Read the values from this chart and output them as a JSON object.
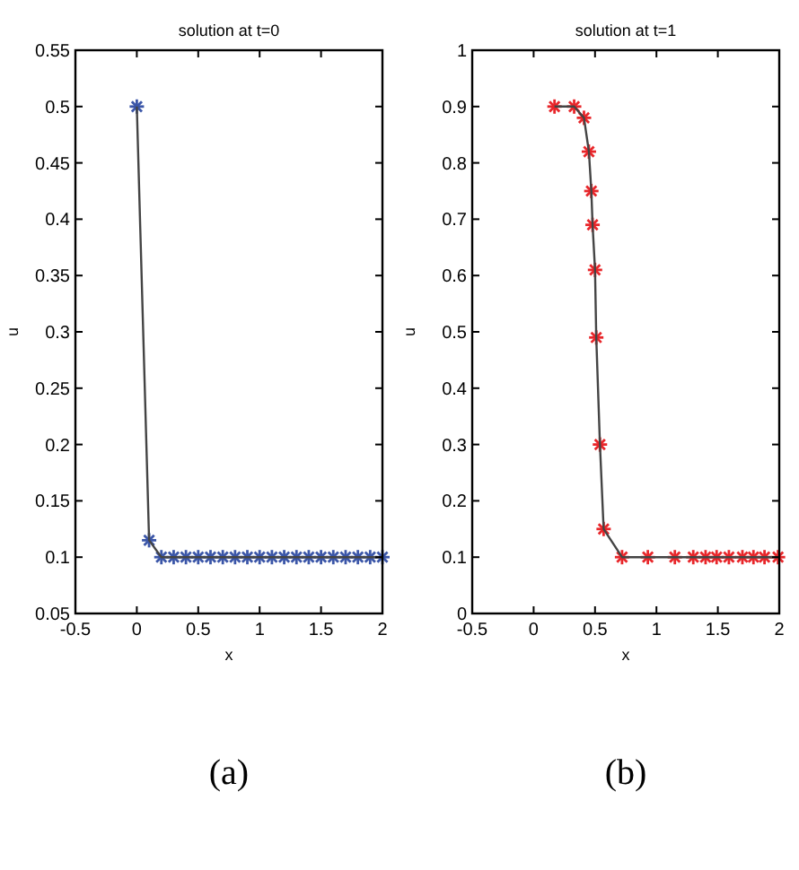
{
  "chart_data": [
    {
      "type": "line",
      "title": "solution at t=0",
      "xlabel": "x",
      "ylabel": "u",
      "marker": "cross",
      "line_style": "solid",
      "grid": false,
      "series": [
        {
          "type": "scatter",
          "color": "#3b56a8",
          "x": [
            0,
            0.1,
            0.2,
            0.3,
            0.4,
            0.5,
            0.6,
            0.7,
            0.8,
            0.9,
            1.0,
            1.1,
            1.2,
            1.3,
            1.4,
            1.5,
            1.6,
            1.7,
            1.8,
            1.9,
            2.0
          ],
          "values": [
            0.5,
            0.115,
            0.1,
            0.1,
            0.1,
            0.1,
            0.1,
            0.1,
            0.1,
            0.1,
            0.1,
            0.1,
            0.1,
            0.1,
            0.1,
            0.1,
            0.1,
            0.1,
            0.1,
            0.1,
            0.1
          ]
        },
        {
          "color": "#444444",
          "x": [
            0,
            0.1,
            0.2,
            0.3,
            0.4,
            0.5,
            0.6,
            0.7,
            0.8,
            0.9,
            1.0,
            1.1,
            1.2,
            1.3,
            1.4,
            1.5,
            1.6,
            1.7,
            1.8,
            1.9,
            2.0
          ],
          "values": [
            0.5,
            0.115,
            0.1,
            0.1,
            0.1,
            0.1,
            0.1,
            0.1,
            0.1,
            0.1,
            0.1,
            0.1,
            0.1,
            0.1,
            0.1,
            0.1,
            0.1,
            0.1,
            0.1,
            0.1,
            0.1
          ]
        }
      ],
      "xlim": [
        -0.5,
        2
      ],
      "xticks": [
        {
          "value": -0.5,
          "label": "-0.5"
        },
        0,
        0.5,
        1,
        1.5,
        2
      ],
      "ylim": [
        0.05,
        0.55
      ],
      "yticks": [
        0.05,
        0.1,
        0.15,
        0.2,
        0.25,
        0.3,
        0.35,
        0.4,
        0.45,
        0.5,
        0.55
      ],
      "annotations": [
        "(a)"
      ]
    },
    {
      "type": "line",
      "title": "solution at t=1",
      "xlabel": "x",
      "ylabel": "u",
      "marker": "cross",
      "line_style": "solid",
      "grid": false,
      "series": [
        {
          "type": "scatter",
          "color": "#e8262a",
          "x": [
            0.17,
            0.33,
            0.41,
            0.45,
            0.47,
            0.48,
            0.5,
            0.51,
            0.54,
            0.57,
            0.72,
            0.93,
            1.15,
            1.3,
            1.4,
            1.49,
            1.59,
            1.7,
            1.79,
            1.88,
            1.99
          ],
          "values": [
            0.9,
            0.9,
            0.88,
            0.82,
            0.75,
            0.69,
            0.61,
            0.49,
            0.3,
            0.15,
            0.1,
            0.1,
            0.1,
            0.1,
            0.1,
            0.1,
            0.1,
            0.1,
            0.1,
            0.1,
            0.1
          ]
        },
        {
          "color": "#444444",
          "x": [
            0.17,
            0.33,
            0.41,
            0.45,
            0.47,
            0.48,
            0.5,
            0.51,
            0.54,
            0.57,
            0.72,
            0.93,
            1.15,
            1.3,
            1.4,
            1.49,
            1.59,
            1.7,
            1.79,
            1.88,
            1.99
          ],
          "values": [
            0.9,
            0.9,
            0.88,
            0.82,
            0.75,
            0.69,
            0.61,
            0.49,
            0.3,
            0.15,
            0.1,
            0.1,
            0.1,
            0.1,
            0.1,
            0.1,
            0.1,
            0.1,
            0.1,
            0.1,
            0.1
          ]
        }
      ],
      "xlim": [
        -0.5,
        2
      ],
      "xticks": [
        {
          "value": -0.5,
          "label": "-0.5"
        },
        0,
        0.5,
        1,
        1.5,
        2
      ],
      "ylim": [
        0,
        1
      ],
      "yticks": [
        0,
        0.1,
        0.2,
        0.3,
        0.4,
        0.5,
        0.6,
        0.7,
        0.8,
        0.9,
        1
      ],
      "annotations": [
        "(b)"
      ]
    }
  ]
}
